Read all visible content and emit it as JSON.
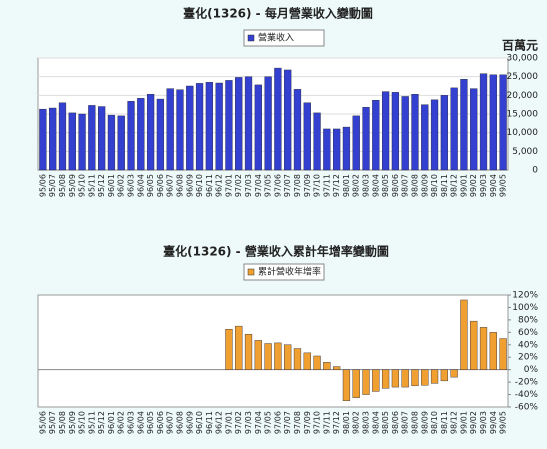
{
  "chart_data": [
    {
      "type": "bar",
      "title": "臺化(1326) - 每月營業收入變動圖",
      "y_unit": "百萬元",
      "categories": [
        "95/06",
        "95/07",
        "95/08",
        "95/09",
        "95/10",
        "95/11",
        "95/12",
        "96/01",
        "96/02",
        "96/03",
        "96/04",
        "96/05",
        "96/06",
        "96/07",
        "96/08",
        "96/09",
        "96/10",
        "96/11",
        "96/12",
        "97/01",
        "97/02",
        "97/03",
        "97/04",
        "97/05",
        "97/06",
        "97/07",
        "97/08",
        "97/09",
        "97/10",
        "97/11",
        "97/12",
        "98/01",
        "98/02",
        "98/03",
        "98/04",
        "98/05",
        "98/06",
        "98/07",
        "98/08",
        "98/09",
        "98/10",
        "98/11",
        "98/12",
        "99/01",
        "99/02",
        "99/03",
        "99/04",
        "99/05"
      ],
      "series": [
        {
          "name": "營業收入",
          "color": "#3340d0",
          "values": [
            16300,
            16600,
            18000,
            15300,
            15000,
            17300,
            17000,
            14700,
            14500,
            18400,
            19200,
            20300,
            19000,
            21800,
            21500,
            22500,
            23200,
            23500,
            23300,
            24000,
            24800,
            25000,
            22800,
            25000,
            27300,
            26800,
            21600,
            18000,
            15300,
            11000,
            11000,
            11500,
            14500,
            16800,
            18700,
            21000,
            20800,
            19700,
            20300,
            17500,
            18800,
            20000,
            22000,
            24300,
            21800,
            25800,
            25500,
            25500
          ]
        }
      ],
      "ylim": [
        0,
        30000
      ],
      "yticks": [
        0,
        {
          "value": 5000,
          "label": "5,000"
        },
        {
          "value": 10000,
          "label": "10,000"
        },
        {
          "value": 15000,
          "label": "15,000"
        },
        {
          "value": 20000,
          "label": "20,000"
        },
        {
          "value": 25000,
          "label": "25,000"
        },
        {
          "value": 30000,
          "label": "30,000"
        }
      ],
      "grid": true
    },
    {
      "type": "bar",
      "title": "臺化(1326) -  營業收入累計年增率變動圖",
      "categories": [
        "95/06",
        "95/07",
        "95/08",
        "95/09",
        "95/10",
        "95/11",
        "95/12",
        "96/01",
        "96/02",
        "96/03",
        "96/04",
        "96/05",
        "96/06",
        "96/07",
        "96/08",
        "96/09",
        "96/10",
        "96/11",
        "96/12",
        "97/01",
        "97/02",
        "97/03",
        "97/04",
        "97/05",
        "97/06",
        "97/07",
        "97/08",
        "97/09",
        "97/10",
        "97/11",
        "97/12",
        "98/01",
        "98/02",
        "98/03",
        "98/04",
        "98/05",
        "98/06",
        "98/07",
        "98/08",
        "98/09",
        "98/10",
        "98/11",
        "98/12",
        "99/01",
        "99/02",
        "99/03",
        "99/04",
        "99/05"
      ],
      "series": [
        {
          "name": "累計營收年增率",
          "color": "#f0a030",
          "values": [
            null,
            null,
            null,
            null,
            null,
            null,
            null,
            null,
            null,
            null,
            null,
            null,
            null,
            null,
            null,
            null,
            null,
            null,
            null,
            65,
            70,
            57,
            47,
            42,
            43,
            40,
            34,
            27,
            22,
            12,
            5,
            -50,
            -45,
            -40,
            -35,
            -30,
            -28,
            -28,
            -26,
            -25,
            -22,
            -18,
            -12,
            112,
            78,
            68,
            60,
            50
          ]
        }
      ],
      "ylim": [
        -60,
        120
      ],
      "yticks": [
        {
          "value": -60,
          "label": "-60%"
        },
        {
          "value": -40,
          "label": "-40%"
        },
        {
          "value": -20,
          "label": "-20%"
        },
        {
          "value": 0,
          "label": "0%"
        },
        {
          "value": 20,
          "label": "20%"
        },
        {
          "value": 40,
          "label": "40%"
        },
        {
          "value": 60,
          "label": "60%"
        },
        {
          "value": 80,
          "label": "80%"
        },
        {
          "value": 100,
          "label": "100%"
        },
        {
          "value": 120,
          "label": "120%"
        }
      ],
      "grid": false
    }
  ]
}
